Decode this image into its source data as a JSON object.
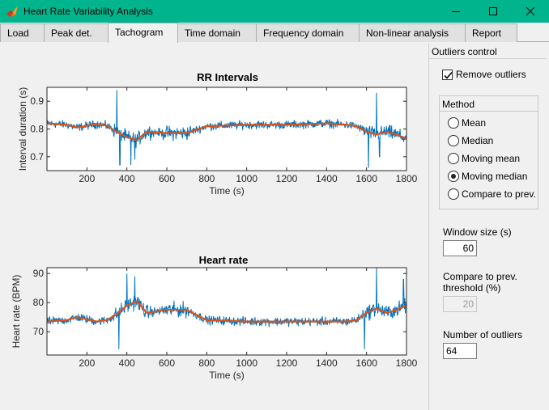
{
  "window": {
    "title": "Heart Rate Variability Analysis"
  },
  "tabs": [
    {
      "label": "Load"
    },
    {
      "label": "Peak det."
    },
    {
      "label": "Tachogram"
    },
    {
      "label": "Time domain"
    },
    {
      "label": "Frequency domain"
    },
    {
      "label": "Non-linear analysis"
    },
    {
      "label": "Report"
    }
  ],
  "active_tab": "Tachogram",
  "panel": {
    "title": "Outliers control",
    "remove_outliers_label": "Remove outliers",
    "remove_outliers_checked": true,
    "method_title": "Method",
    "methods": [
      {
        "label": "Mean"
      },
      {
        "label": "Median"
      },
      {
        "label": "Moving mean"
      },
      {
        "label": "Moving median"
      },
      {
        "label": "Compare to prev."
      }
    ],
    "selected_method": "Moving median",
    "window_size_label": "Window size (s)",
    "window_size_value": "60",
    "threshold_label_1": "Compare to prev.",
    "threshold_label_2": "threshold (%)",
    "threshold_value": "20",
    "outliers_label": "Number of outliers",
    "outliers_value": "64"
  },
  "colors": {
    "signal": "#0072bd",
    "trend": "#d95319",
    "titlebar": "#00b58e"
  },
  "chart_data": [
    {
      "type": "line",
      "title": "RR Intervals",
      "xlabel": "Time (s)",
      "ylabel": "Interval duration (s)",
      "xlim": [
        0,
        1800
      ],
      "ylim": [
        0.65,
        0.95
      ],
      "xticks": [
        200,
        400,
        600,
        800,
        1000,
        1200,
        1400,
        1600,
        1800
      ],
      "yticks": [
        0.7,
        0.8,
        0.9
      ],
      "ytick_labels": [
        "0.7",
        "0.8",
        "0.9"
      ],
      "series": [
        {
          "role": "signal",
          "color": "#0072bd"
        },
        {
          "role": "trend",
          "color": "#d95319",
          "x": [
            0,
            100,
            150,
            250,
            300,
            350,
            400,
            450,
            500,
            600,
            700,
            800,
            1000,
            1200,
            1400,
            1500,
            1550,
            1600,
            1650,
            1700,
            1750,
            1800
          ],
          "y": [
            0.82,
            0.815,
            0.805,
            0.818,
            0.812,
            0.79,
            0.77,
            0.76,
            0.79,
            0.785,
            0.785,
            0.81,
            0.815,
            0.815,
            0.82,
            0.815,
            0.81,
            0.79,
            0.78,
            0.79,
            0.78,
            0.765
          ]
        }
      ]
    },
    {
      "type": "line",
      "title": "Heart rate",
      "xlabel": "Time (s)",
      "ylabel": "Heart rate (BPM)",
      "xlim": [
        0,
        1800
      ],
      "ylim": [
        62,
        92
      ],
      "xticks": [
        200,
        400,
        600,
        800,
        1000,
        1200,
        1400,
        1600,
        1800
      ],
      "yticks": [
        70,
        80,
        90
      ],
      "ytick_labels": [
        "70",
        "80",
        "90"
      ],
      "series": [
        {
          "role": "signal",
          "color": "#0072bd"
        },
        {
          "role": "trend",
          "color": "#d95319",
          "x": [
            0,
            100,
            150,
            250,
            300,
            350,
            400,
            450,
            500,
            600,
            700,
            800,
            1000,
            1200,
            1400,
            1500,
            1550,
            1600,
            1650,
            1700,
            1750,
            1800
          ],
          "y": [
            73.5,
            74,
            75,
            73.5,
            74,
            76,
            79,
            80.5,
            76.5,
            77.5,
            77.5,
            74,
            73.5,
            73.5,
            73.5,
            73.5,
            74,
            76.5,
            78,
            76.5,
            77.5,
            79
          ]
        }
      ]
    }
  ]
}
